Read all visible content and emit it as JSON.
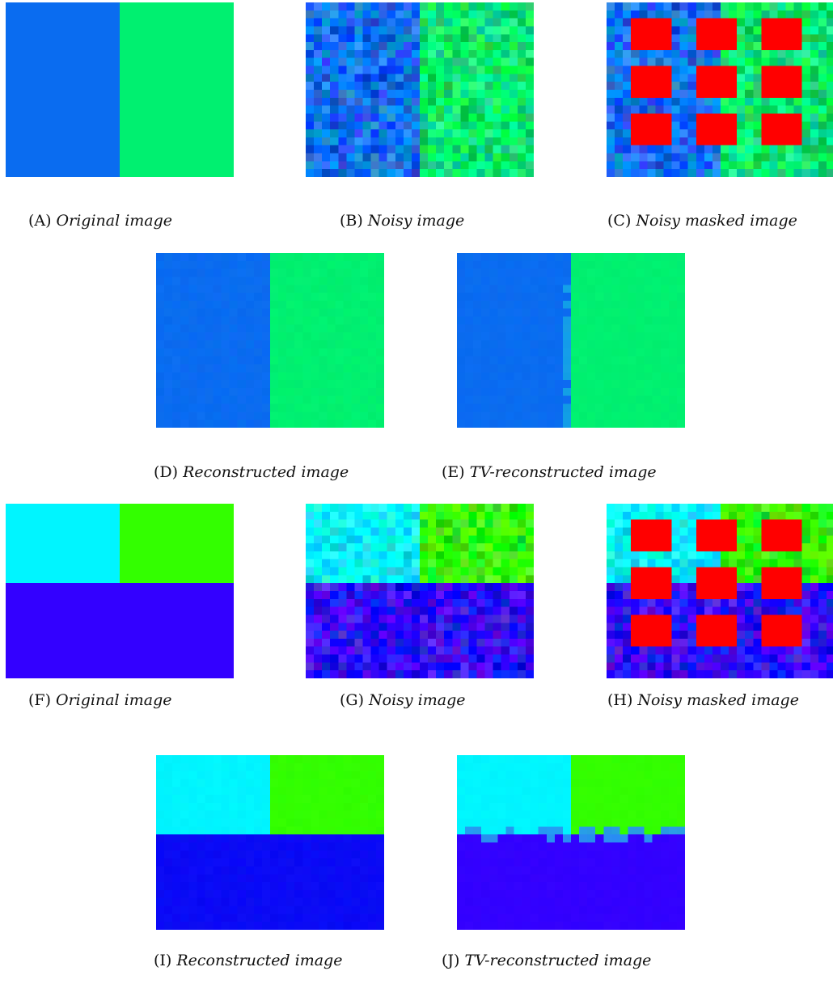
{
  "figure": {
    "panels": [
      {
        "id": "A",
        "label": "(A)",
        "caption": "Original image",
        "scene": "two-vertical",
        "kind": "original"
      },
      {
        "id": "B",
        "label": "(B)",
        "caption": "Noisy image",
        "scene": "two-vertical",
        "kind": "noisy"
      },
      {
        "id": "C",
        "label": "(C)",
        "caption": "Noisy masked image",
        "scene": "two-vertical",
        "kind": "masked"
      },
      {
        "id": "D",
        "label": "(D)",
        "caption": "Reconstructed image",
        "scene": "two-vertical",
        "kind": "reconstructed"
      },
      {
        "id": "E",
        "label": "(E)",
        "caption": "TV-reconstructed image",
        "scene": "two-vertical",
        "kind": "tv"
      },
      {
        "id": "F",
        "label": "(F)",
        "caption": "Original image",
        "scene": "three-region",
        "kind": "original"
      },
      {
        "id": "G",
        "label": "(G)",
        "caption": "Noisy image",
        "scene": "three-region",
        "kind": "noisy"
      },
      {
        "id": "H",
        "label": "(H)",
        "caption": "Noisy masked image",
        "scene": "three-region",
        "kind": "masked"
      },
      {
        "id": "I",
        "label": "(I)",
        "caption": "Reconstructed image",
        "scene": "three-region",
        "kind": "reconstructed"
      },
      {
        "id": "J",
        "label": "(J)",
        "caption": "TV-reconstructed image",
        "scene": "three-region",
        "kind": "tv"
      }
    ],
    "colors": {
      "blue": "#0a6cf0",
      "green": "#00f070",
      "cyan": "#00f5ff",
      "lime": "#33ff00",
      "indigo": "#3300ff",
      "mask_red": "#ff0000"
    }
  }
}
